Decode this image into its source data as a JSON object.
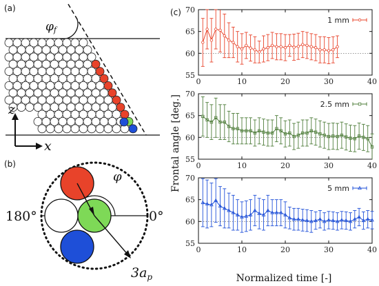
{
  "panel_labels": {
    "a": "(a)",
    "b": "(b)",
    "c": "(c)"
  },
  "schematic_a": {
    "angle_label": "φ",
    "angle_sub": "f",
    "z_axis": "z",
    "x_axis": "x",
    "colors": {
      "red": "#e8432a",
      "green": "#7ed957",
      "blue": "#1e4fd8"
    }
  },
  "schematic_b": {
    "label_180": "180°",
    "label_0": "0°",
    "phi": "φ",
    "radius_label": "3a",
    "radius_sub": "p",
    "colors": {
      "red": "#e8432a",
      "green": "#7ed957",
      "blue": "#1e4fd8"
    }
  },
  "chart_data": [
    {
      "type": "line",
      "ylabel": "Frontal angle [deg.]",
      "xlabel": "",
      "xlim": [
        0,
        40
      ],
      "ylim": [
        55,
        70
      ],
      "yticks": [
        55,
        60,
        65,
        70
      ],
      "xticks": [
        0,
        10,
        20,
        30,
        40
      ],
      "reference_y": 60,
      "color": "#e8432a",
      "series": [
        {
          "name": "1 mm",
          "x": [
            1,
            2,
            3,
            4,
            5,
            6,
            7,
            8,
            9,
            10,
            11,
            12,
            13,
            14,
            15,
            16,
            17,
            18,
            19,
            20,
            21,
            22,
            23,
            24,
            25,
            26,
            27,
            28,
            29,
            30,
            31,
            32
          ],
          "y": [
            62.5,
            65.5,
            63,
            65.5,
            65.3,
            64,
            63,
            62.5,
            61.5,
            61,
            61.8,
            61.2,
            60.8,
            60.3,
            61,
            61.3,
            61.8,
            61.5,
            61.5,
            61.3,
            61.8,
            61.4,
            61.6,
            62,
            61.8,
            61.5,
            61.3,
            60.8,
            60.8,
            60.6,
            60.8,
            61.5
          ],
          "err": [
            5.5,
            4.5,
            5,
            4.5,
            5,
            5,
            4,
            3.5,
            3.5,
            3.5,
            3,
            3,
            3,
            2.5,
            3,
            3,
            3,
            3,
            3,
            3,
            2.5,
            3,
            3,
            3,
            3,
            3,
            3,
            3,
            3,
            3,
            3,
            2.5
          ]
        }
      ]
    },
    {
      "type": "line",
      "ylabel": "Frontal angle [deg.]",
      "xlabel": "",
      "xlim": [
        0,
        40
      ],
      "ylim": [
        55,
        70
      ],
      "yticks": [
        55,
        60,
        65,
        70
      ],
      "xticks": [
        0,
        10,
        20,
        30,
        40
      ],
      "reference_y": 60,
      "color": "#4e7d3a",
      "series": [
        {
          "name": "2.5 mm",
          "x": [
            1,
            2,
            3,
            4,
            5,
            6,
            7,
            8,
            9,
            10,
            11,
            12,
            13,
            14,
            15,
            16,
            17,
            18,
            19,
            20,
            21,
            22,
            23,
            24,
            25,
            26,
            27,
            28,
            29,
            30,
            31,
            32,
            33,
            34,
            35,
            36,
            37,
            38,
            39,
            40
          ],
          "y": [
            64.8,
            64,
            63.5,
            64.5,
            63.5,
            63.5,
            62.5,
            62,
            62,
            61.5,
            61.5,
            61.5,
            61,
            61.5,
            61.2,
            61,
            61,
            62,
            61.5,
            60.8,
            61,
            60.2,
            60.5,
            61,
            61,
            61.5,
            61.2,
            60.8,
            60.5,
            60.2,
            60.3,
            60.2,
            60.5,
            60.1,
            59.8,
            59.7,
            60.3,
            60,
            59.7,
            57.8
          ],
          "err": [
            4.5,
            4,
            4,
            4.5,
            4,
            4,
            3.5,
            3.5,
            3.5,
            3,
            3,
            3,
            3,
            3,
            3,
            3,
            3,
            3,
            3,
            3,
            3,
            3,
            3,
            3,
            3,
            3,
            3,
            3,
            3,
            3,
            3,
            3,
            3,
            3,
            3,
            3,
            3,
            3,
            3,
            3
          ]
        }
      ]
    },
    {
      "type": "line",
      "ylabel": "Frontal angle [deg.]",
      "xlabel": "Normalized time [-]",
      "xlim": [
        0,
        40
      ],
      "ylim": [
        55,
        70
      ],
      "yticks": [
        55,
        60,
        65,
        70
      ],
      "xticks": [
        0,
        10,
        20,
        30,
        40
      ],
      "reference_y": 60,
      "color": "#1e4fd8",
      "series": [
        {
          "name": "5 mm",
          "x": [
            1,
            2,
            3,
            4,
            5,
            6,
            7,
            8,
            9,
            10,
            11,
            12,
            13,
            14,
            15,
            16,
            17,
            18,
            19,
            20,
            21,
            22,
            23,
            24,
            25,
            26,
            27,
            28,
            29,
            30,
            31,
            32,
            33,
            34,
            35,
            36,
            37,
            38,
            39,
            40
          ],
          "y": [
            64.3,
            64,
            63.8,
            64.8,
            63.5,
            63,
            62.5,
            62,
            61.5,
            61,
            61.2,
            61.5,
            62.5,
            61.8,
            61.5,
            62.5,
            62,
            62,
            62,
            61.5,
            60.8,
            60.5,
            60.5,
            60.3,
            60.2,
            60,
            60.2,
            60.5,
            60,
            60.3,
            60.2,
            60,
            60.3,
            60.2,
            60,
            60.5,
            61,
            60.2,
            60.5,
            60.3
          ],
          "err": [
            5.5,
            5.5,
            5,
            5,
            4.5,
            4.5,
            4,
            4,
            3.5,
            3.5,
            3.5,
            3.5,
            3.5,
            3.5,
            3.5,
            3.5,
            3,
            3,
            3,
            3,
            2.5,
            2.5,
            2.5,
            2.5,
            2.5,
            2.5,
            2,
            2,
            2,
            2,
            2,
            2,
            2,
            2,
            2,
            2,
            2,
            2,
            2,
            2
          ]
        }
      ]
    }
  ]
}
